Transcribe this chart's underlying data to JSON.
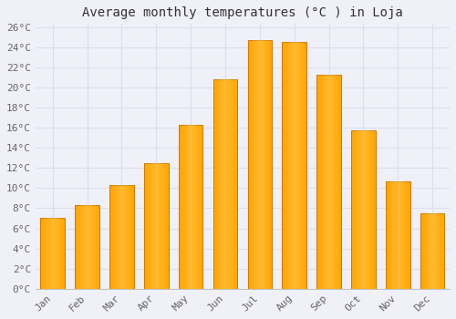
{
  "title": "Average monthly temperatures (°C ) in Loja",
  "months": [
    "Jan",
    "Feb",
    "Mar",
    "Apr",
    "May",
    "Jun",
    "Jul",
    "Aug",
    "Sep",
    "Oct",
    "Nov",
    "Dec"
  ],
  "values": [
    7.0,
    8.3,
    10.3,
    12.5,
    16.3,
    20.8,
    24.7,
    24.5,
    21.3,
    15.7,
    10.7,
    7.5
  ],
  "bar_color": "#FFA500",
  "bar_highlight": "#FFD060",
  "bar_edge_color": "#CC7700",
  "background_color": "#F0F0F8",
  "plot_bg_color": "#F0F0F8",
  "grid_color": "#DDDDEE",
  "ytick_step": 2,
  "ymin": 0,
  "ymax": 26,
  "title_fontsize": 10,
  "tick_fontsize": 8,
  "tick_color": "#666666",
  "title_color": "#333333"
}
